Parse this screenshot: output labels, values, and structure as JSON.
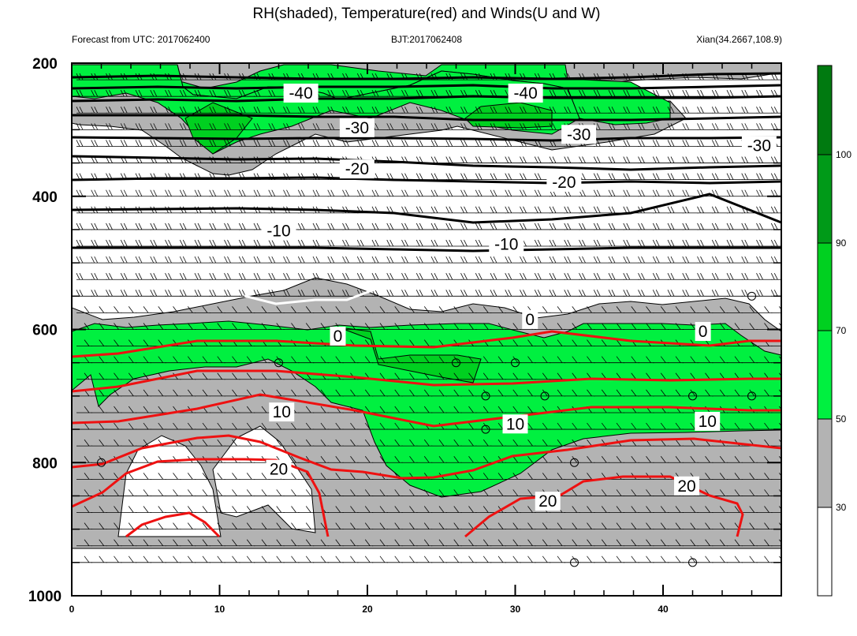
{
  "chart_data": {
    "type": "contour",
    "title": "RH(shaded), Temperature(red) and Winds(U and W)",
    "subtitle_left": "Forecast from UTC: 2017062400",
    "subtitle_center": "BJT:2017062408",
    "subtitle_right": "Xian(34.2667,108.9)",
    "xlim": [
      0,
      48
    ],
    "ylim": [
      200,
      1000
    ],
    "y_reversed": true,
    "x_ticks": [
      "0",
      "10",
      "20",
      "30",
      "40"
    ],
    "y_ticks": [
      "200",
      "400",
      "600",
      "800",
      "1000"
    ],
    "colorbar_levels": [
      "30",
      "50",
      "70",
      "90",
      "100"
    ],
    "colors": {
      "rh_band_30_50": "#b3b3b3",
      "rh_band_50_70": "#00f040",
      "rh_band_70_90": "#00d020",
      "rh_band_90_100": "#009a18",
      "rh_band_above_100": "#007a10",
      "warm_isotherm": "#ee1111",
      "cold_isotherm": "#000000",
      "freezing_isotherm": "#ffffff"
    },
    "isotherm_labels": [
      {
        "text": "-40",
        "x": 15.5,
        "y": 245
      },
      {
        "text": "-40",
        "x": 30.7,
        "y": 245
      },
      {
        "text": "-30",
        "x": 19.3,
        "y": 297
      },
      {
        "text": "-30",
        "x": 34.3,
        "y": 307
      },
      {
        "text": "-30",
        "x": 46.5,
        "y": 324
      },
      {
        "text": "-20",
        "x": 19.3,
        "y": 359
      },
      {
        "text": "-20",
        "x": 33.3,
        "y": 379
      },
      {
        "text": "-10",
        "x": 14.0,
        "y": 452
      },
      {
        "text": "-10",
        "x": 29.4,
        "y": 472
      },
      {
        "text": "0",
        "x": 18.0,
        "y": 610
      },
      {
        "text": "0",
        "x": 31.0,
        "y": 585
      },
      {
        "text": "0",
        "x": 42.7,
        "y": 603
      },
      {
        "text": "10",
        "x": 14.2,
        "y": 724
      },
      {
        "text": "10",
        "x": 30.0,
        "y": 742
      },
      {
        "text": "10",
        "x": 43.0,
        "y": 738
      },
      {
        "text": "20",
        "x": 14.0,
        "y": 810
      },
      {
        "text": "20",
        "x": 32.2,
        "y": 858
      },
      {
        "text": "20",
        "x": 41.6,
        "y": 835
      }
    ],
    "calm_markers": [
      {
        "x": 14,
        "y": 650
      },
      {
        "x": 26,
        "y": 650
      },
      {
        "x": 30,
        "y": 650
      },
      {
        "x": 32,
        "y": 700
      },
      {
        "x": 28,
        "y": 700
      },
      {
        "x": 28,
        "y": 750
      },
      {
        "x": 34,
        "y": 800
      },
      {
        "x": 42,
        "y": 700
      },
      {
        "x": 46,
        "y": 700
      },
      {
        "x": 46,
        "y": 550
      },
      {
        "x": 2,
        "y": 800
      },
      {
        "x": 34,
        "y": 950
      },
      {
        "x": 42,
        "y": 950
      }
    ]
  }
}
